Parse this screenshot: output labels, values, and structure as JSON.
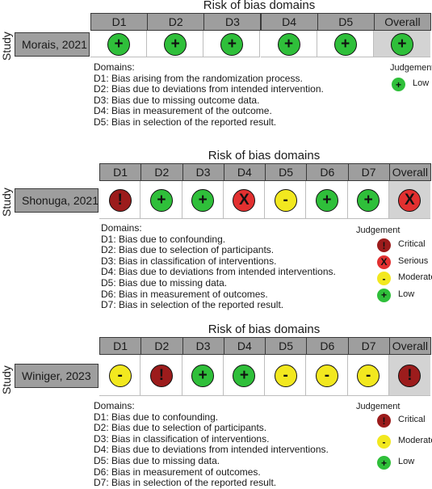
{
  "panels": [
    {
      "title": "Risk of bias domains",
      "axis_label": "Study",
      "columns": [
        "D1",
        "D2",
        "D3",
        "D4",
        "D5",
        "Overall"
      ],
      "study": "Morais, 2021",
      "judgements": [
        {
          "symbol": "+",
          "level": "low"
        },
        {
          "symbol": "+",
          "level": "low"
        },
        {
          "symbol": "+",
          "level": "low"
        },
        {
          "symbol": "+",
          "level": "low"
        },
        {
          "symbol": "+",
          "level": "low"
        },
        {
          "symbol": "+",
          "level": "low"
        }
      ],
      "domains_heading": "Domains:",
      "domains": [
        "D1: Bias arising from the randomization process.",
        "D2: Bias due to deviations from intended intervention.",
        "D3: Bias due to missing outcome data.",
        "D4: Bias in measurement of the outcome.",
        "D5: Bias in selection of the reported result."
      ],
      "judgement_title": "Judgement",
      "legend": [
        {
          "symbol": "+",
          "level": "low",
          "label": "Low"
        }
      ]
    },
    {
      "title": "Risk of bias domains",
      "axis_label": "Study",
      "columns": [
        "D1",
        "D2",
        "D3",
        "D4",
        "D5",
        "D6",
        "D7",
        "Overall"
      ],
      "study": "Shonuga, 2021",
      "judgements": [
        {
          "symbol": "!",
          "level": "critical"
        },
        {
          "symbol": "+",
          "level": "low"
        },
        {
          "symbol": "+",
          "level": "low"
        },
        {
          "symbol": "X",
          "level": "serious"
        },
        {
          "symbol": "-",
          "level": "moderate"
        },
        {
          "symbol": "+",
          "level": "low"
        },
        {
          "symbol": "+",
          "level": "low"
        },
        {
          "symbol": "X",
          "level": "serious"
        }
      ],
      "domains_heading": "Domains:",
      "domains": [
        "D1: Bias due to confounding.",
        "D2: Bias due to selection of participants.",
        "D3: Bias in classification of interventions.",
        "D4: Bias due to deviations from intended interventions.",
        "D5: Bias due to missing data.",
        "D6: Bias in measurement of outcomes.",
        "D7: Bias in selection of the reported result."
      ],
      "judgement_title": "Judgement",
      "legend": [
        {
          "symbol": "!",
          "level": "critical",
          "label": "Critical"
        },
        {
          "symbol": "X",
          "level": "serious",
          "label": "Serious"
        },
        {
          "symbol": "-",
          "level": "moderate",
          "label": "Moderate"
        },
        {
          "symbol": "+",
          "level": "low",
          "label": "Low"
        }
      ]
    },
    {
      "title": "Risk of bias domains",
      "axis_label": "Study",
      "columns": [
        "D1",
        "D2",
        "D3",
        "D4",
        "D5",
        "D6",
        "D7",
        "Overall"
      ],
      "study": "Winiger, 2023",
      "judgements": [
        {
          "symbol": "-",
          "level": "moderate"
        },
        {
          "symbol": "!",
          "level": "critical"
        },
        {
          "symbol": "+",
          "level": "low"
        },
        {
          "symbol": "+",
          "level": "low"
        },
        {
          "symbol": "-",
          "level": "moderate"
        },
        {
          "symbol": "-",
          "level": "moderate"
        },
        {
          "symbol": "-",
          "level": "moderate"
        },
        {
          "symbol": "!",
          "level": "critical"
        }
      ],
      "domains_heading": "Domains:",
      "domains": [
        "D1: Bias due to confounding.",
        "D2: Bias due to selection of participants.",
        "D3: Bias in classification of interventions.",
        "D4: Bias due to deviations from intended interventions.",
        "D5: Bias due to missing data.",
        "D6: Bias in measurement of outcomes.",
        "D7: Bias in selection of the reported result."
      ],
      "judgement_title": "Judgement",
      "legend": [
        {
          "symbol": "!",
          "level": "critical",
          "label": "Critical"
        },
        {
          "symbol": "-",
          "level": "moderate",
          "label": "Moderate"
        },
        {
          "symbol": "+",
          "level": "low",
          "label": "Low"
        }
      ]
    }
  ],
  "colors": {
    "low": "#2fbf3a",
    "moderate": "#f2e81f",
    "serious": "#e23030",
    "critical": "#9c1c1c",
    "header_bg": "#9e9e9e",
    "overall_bg": "#d3d3d3"
  }
}
